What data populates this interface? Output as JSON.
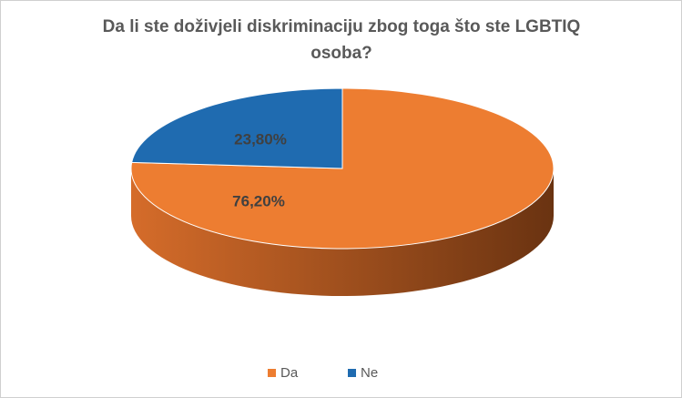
{
  "chart_data": {
    "type": "pie3d",
    "title": "Da li ste doživjeli diskriminaciju zbog toga što ste LGBTIQ osoba?",
    "categories": [
      "Da",
      "Ne"
    ],
    "values": [
      76.2,
      23.8
    ],
    "value_labels": [
      "76,20%",
      "23,80%"
    ],
    "colors": [
      "#ED7D31",
      "#1F6BB0"
    ],
    "legend": "bottom"
  }
}
